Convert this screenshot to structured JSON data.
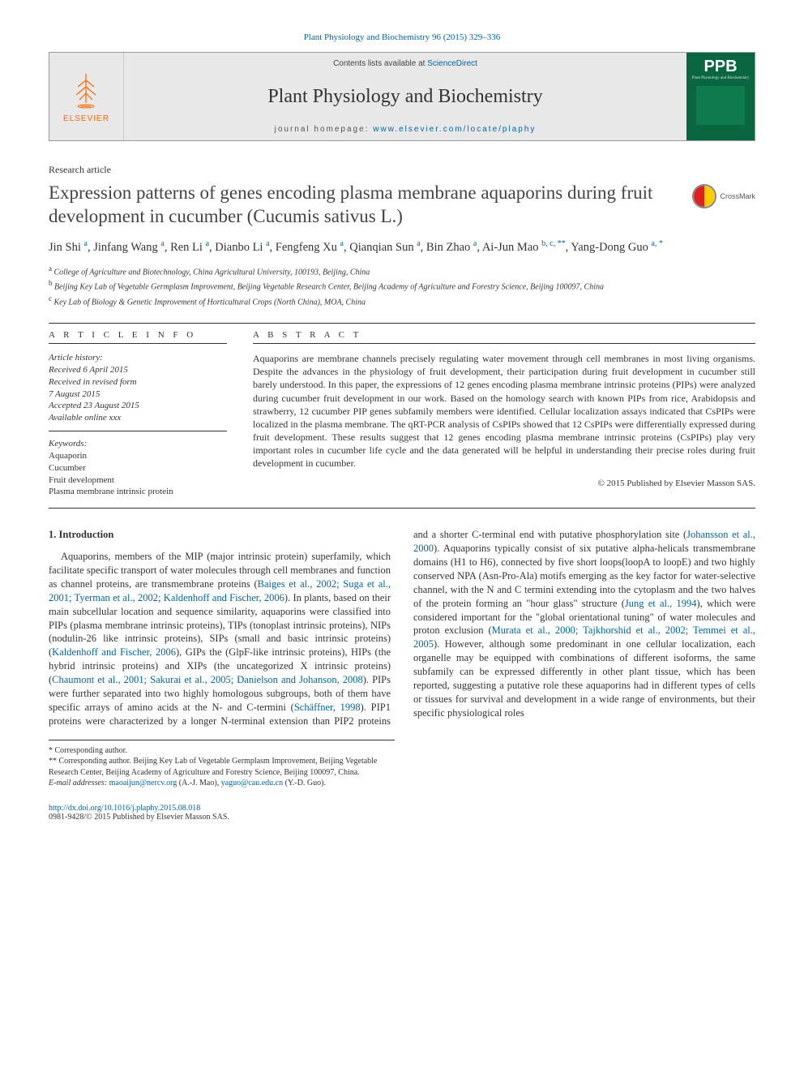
{
  "citation": "Plant Physiology and Biochemistry 96 (2015) 329–336",
  "banner": {
    "publisher_label": "ELSEVIER",
    "contents_prefix": "Contents lists available at ",
    "contents_link": "ScienceDirect",
    "journal_name": "Plant Physiology and Biochemistry",
    "homepage_prefix": "journal homepage: ",
    "homepage_url": "www.elsevier.com/locate/plaphy",
    "cover_initials": "PPB",
    "cover_subtitle": "Plant Physiology and Biochemistry"
  },
  "article_type": "Research article",
  "title": "Expression patterns of genes encoding plasma membrane aquaporins during fruit development in cucumber (Cucumis sativus L.)",
  "crossmark_label": "CrossMark",
  "authors_html": "Jin Shi <sup>a</sup>, Jinfang Wang <sup>a</sup>, Ren Li <sup>a</sup>, Dianbo Li <sup>a</sup>, Fengfeng Xu <sup>a</sup>, Qianqian Sun <sup>a</sup>, Bin Zhao <sup>a</sup>, Ai-Jun Mao <sup>b, c, **</sup>, Yang-Dong Guo <sup>a, *</sup>",
  "affiliations": [
    {
      "sup": "a",
      "text": "College of Agriculture and Biotechnology, China Agricultural University, 100193, Beijing, China"
    },
    {
      "sup": "b",
      "text": "Beijing Key Lab of Vegetable Germplasm Improvement, Beijing Vegetable Research Center, Beijing Academy of Agriculture and Forestry Science, Beijing 100097, China"
    },
    {
      "sup": "c",
      "text": "Key Lab of Biology & Genetic Improvement of Horticultural Crops (North China), MOA, China"
    }
  ],
  "info_heading": "A R T I C L E   I N F O",
  "abstract_heading": "A B S T R A C T",
  "history": {
    "label": "Article history:",
    "lines": [
      "Received 6 April 2015",
      "Received in revised form",
      "7 August 2015",
      "Accepted 23 August 2015",
      "Available online xxx"
    ]
  },
  "keywords": {
    "label": "Keywords:",
    "items": [
      "Aquaporin",
      "Cucumber",
      "Fruit development",
      "Plasma membrane intrinsic protein"
    ]
  },
  "abstract_text": "Aquaporins are membrane channels precisely regulating water movement through cell membranes in most living organisms. Despite the advances in the physiology of fruit development, their participation during fruit development in cucumber still barely understood. In this paper, the expressions of 12 genes encoding plasma membrane intrinsic proteins (PIPs) were analyzed during cucumber fruit development in our work. Based on the homology search with known PIPs from rice, Arabidopsis and strawberry, 12 cucumber PIP genes subfamily members were identified. Cellular localization assays indicated that CsPIPs were localized in the plasma membrane. The qRT-PCR analysis of CsPIPs showed that 12 CsPIPs were differentially expressed during fruit development. These results suggest that 12 genes encoding plasma membrane intrinsic proteins (CsPIPs) play very important roles in cucumber life cycle and the data generated will be helpful in understanding their precise roles during fruit development in cucumber.",
  "copyright": "© 2015 Published by Elsevier Masson SAS.",
  "intro": {
    "heading": "1. Introduction",
    "para1_pre": "Aquaporins, members of the MIP (major intrinsic protein) superfamily, which facilitate specific transport of water molecules through cell membranes and function as channel proteins, are transmembrane proteins (",
    "ref1": "Baiges et al., 2002; Suga et al., 2001; Tyerman et al., 2002; Kaldenhoff and Fischer, 2006",
    "para1_mid": "). In plants, based on their main subcellular location and sequence similarity, aquaporins were classified into PIPs (plasma membrane intrinsic proteins), TIPs (tonoplast intrinsic proteins), NIPs (nodulin-26 like intrinsic proteins), SIPs (small and basic intrinsic proteins) (",
    "ref2": "Kaldenhoff and Fischer, 2006",
    "para1_mid2": "), GIPs the (GlpF-like intrinsic proteins), HIPs (the hybrid intrinsic proteins) and XIPs (the uncategorized X intrinsic proteins) (",
    "ref3": "Chaumont et al., 2001; Sakurai et al., 2005; Danielson and Johanson, 2008",
    "para1_mid3": "). PIPs were further separated into two highly homologous subgroups, both of them have specific arrays of amino acids at the N- and C-termini (",
    "ref4": "Schäffner, 1998",
    "para1_mid4": "). PIP1 proteins were characterized by a longer N-terminal extension than PIP2 proteins and a shorter C-terminal end with putative phosphorylation site (",
    "ref5": "Johansson et al., 2000",
    "para1_mid5": "). Aquaporins typically consist of six putative alpha-helicals transmembrane domains (H1 to H6), connected by five short loops(loopA to loopE) and two highly conserved NPA (Asn-Pro-Ala) motifs emerging as the key factor for water-selective channel, with the N and C termini extending into the cytoplasm and the two halves of the protein forming an \"hour glass\" structure (",
    "ref6": "Jung et al., 1994",
    "para1_mid6": "), which were considered important for the \"global orientational tuning\" of water molecules and proton exclusion (",
    "ref7": "Murata et al., 2000; Tajkhorshid et al., 2002; Temmei et al., 2005",
    "para1_post": "). However, although some predominant in one cellular localization, each organelle may be equipped with combinations of different isoforms, the same subfamily can be expressed differently in other plant tissue, which has been reported, suggesting a putative role these aquaporins had in different types of cells or tissues for survival and development in a wide range of environments, but their specific physiological roles"
  },
  "footnotes": {
    "corr1": "* Corresponding author.",
    "corr2": "** Corresponding author. Beijing Key Lab of Vegetable Germplasm Improvement, Beijing Vegetable Research Center, Beijing Academy of Agriculture and Forestry Science, Beijing 100097, China.",
    "emails_label": "E-mail addresses:",
    "email1": "maoaijun@nercv.org",
    "email1_who": "(A.-J. Mao),",
    "email2": "yaguo@cau.edu.cn",
    "email2_who": "(Y.-D. Guo)."
  },
  "doi": {
    "url": "http://dx.doi.org/10.1016/j.plaphy.2015.08.018",
    "issn_line": "0981-9428/© 2015 Published by Elsevier Masson SAS."
  },
  "colors": {
    "link": "#0066a1",
    "publisher_orange": "#ff6600",
    "cover_green": "#0a6640",
    "text": "#333333",
    "banner_bg": "#e8e8e8"
  }
}
